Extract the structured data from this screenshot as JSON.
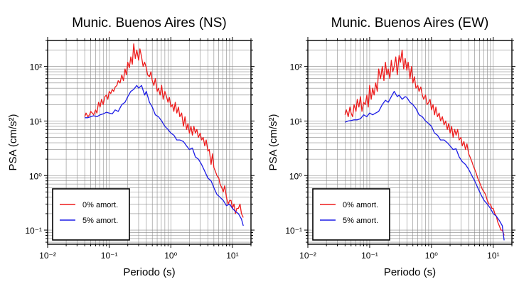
{
  "chart_data": [
    {
      "type": "line",
      "title": "Munic. Buenos Aires (NS)",
      "xlabel": "Periodo (s)",
      "ylabel": "PSA (cm/s²)",
      "xscale": "log",
      "yscale": "log",
      "xlim": [
        0.01,
        20
      ],
      "ylim": [
        0.055,
        300
      ],
      "xticks": [
        "10⁻²",
        "10⁻¹",
        "10⁰",
        "10¹"
      ],
      "yticks": [
        "10⁻¹",
        "10⁰",
        "10¹",
        "10²"
      ],
      "grid": true,
      "legend": "bottom-left",
      "series": [
        {
          "name": "0% amort.",
          "color": "#ee1c1c",
          "x": [
            0.04,
            0.042,
            0.045,
            0.048,
            0.05,
            0.053,
            0.056,
            0.06,
            0.063,
            0.067,
            0.071,
            0.075,
            0.08,
            0.085,
            0.09,
            0.095,
            0.1,
            0.106,
            0.112,
            0.118,
            0.125,
            0.133,
            0.14,
            0.15,
            0.16,
            0.17,
            0.18,
            0.19,
            0.2,
            0.212,
            0.224,
            0.237,
            0.25,
            0.265,
            0.28,
            0.3,
            0.315,
            0.335,
            0.355,
            0.375,
            0.4,
            0.42,
            0.45,
            0.475,
            0.5,
            0.53,
            0.56,
            0.6,
            0.63,
            0.67,
            0.71,
            0.75,
            0.8,
            0.85,
            0.9,
            0.95,
            1.0,
            1.06,
            1.12,
            1.18,
            1.25,
            1.33,
            1.4,
            1.5,
            1.6,
            1.7,
            1.8,
            1.9,
            2.0,
            2.12,
            2.24,
            2.37,
            2.5,
            2.65,
            2.8,
            3.0,
            3.15,
            3.35,
            3.55,
            3.75,
            4.0,
            4.2,
            4.5,
            4.75,
            5.0,
            5.3,
            5.6,
            6.0,
            6.3,
            6.7,
            7.1,
            7.5,
            8.0,
            8.5,
            9.0,
            9.5,
            10.0,
            10.6,
            11.2,
            11.8,
            12.5,
            13.3,
            14.0,
            15.0
          ],
          "y": [
            12,
            14,
            12,
            13,
            15,
            14,
            13,
            16,
            14,
            22,
            18,
            25,
            20,
            28,
            30,
            25,
            35,
            32,
            38,
            35,
            42,
            45,
            55,
            50,
            70,
            55,
            90,
            70,
            120,
            95,
            150,
            110,
            260,
            140,
            200,
            130,
            210,
            150,
            100,
            120,
            95,
            70,
            65,
            80,
            55,
            45,
            60,
            35,
            40,
            30,
            45,
            25,
            35,
            28,
            22,
            27,
            18,
            20,
            15,
            22,
            14,
            18,
            12,
            14,
            8,
            12,
            7,
            9,
            6,
            8,
            5.5,
            8,
            6,
            7,
            5,
            6,
            4.5,
            5,
            3.5,
            4.5,
            2.8,
            3,
            1.6,
            2.5,
            1.4,
            1.2,
            1.0,
            0.9,
            0.7,
            0.6,
            0.5,
            0.65,
            0.4,
            0.3,
            0.35,
            0.35,
            0.25,
            0.3,
            0.2,
            0.25,
            0.25,
            0.3,
            0.2,
            0.17
          ]
        },
        {
          "name": "5% amort.",
          "color": "#1c1ce6",
          "x": [
            0.04,
            0.045,
            0.05,
            0.056,
            0.063,
            0.071,
            0.08,
            0.09,
            0.1,
            0.112,
            0.125,
            0.14,
            0.16,
            0.18,
            0.2,
            0.224,
            0.25,
            0.28,
            0.3,
            0.335,
            0.375,
            0.4,
            0.45,
            0.5,
            0.56,
            0.63,
            0.71,
            0.8,
            0.9,
            1.0,
            1.12,
            1.25,
            1.4,
            1.6,
            1.8,
            2.0,
            2.24,
            2.5,
            2.8,
            3.15,
            3.55,
            4.0,
            4.5,
            5.0,
            5.6,
            6.3,
            7.1,
            8.0,
            9.0,
            10.0,
            11.2,
            12.5,
            14.0,
            15.0
          ],
          "y": [
            11.5,
            11.5,
            12,
            12.5,
            12,
            13,
            13.5,
            14.5,
            14,
            13.5,
            16,
            15,
            20,
            22,
            28,
            35,
            38,
            45,
            40,
            45,
            30,
            35,
            22,
            18,
            13,
            12,
            10,
            8,
            7,
            6,
            5.5,
            4.5,
            4.5,
            4.2,
            3.5,
            3,
            3.2,
            2.2,
            2.0,
            1.6,
            1.2,
            0.9,
            0.8,
            0.6,
            0.45,
            0.4,
            0.35,
            0.28,
            0.3,
            0.25,
            0.22,
            0.2,
            0.16,
            0.12
          ]
        }
      ]
    },
    {
      "type": "line",
      "title": "Munic. Buenos Aires (EW)",
      "xlabel": "Periodo (s)",
      "ylabel": "PSA (cm/s²)",
      "xscale": "log",
      "yscale": "log",
      "xlim": [
        0.01,
        20
      ],
      "ylim": [
        0.055,
        300
      ],
      "xticks": [
        "10⁻²",
        "10⁻¹",
        "10⁰",
        "10¹"
      ],
      "yticks": [
        "10⁻¹",
        "10⁰",
        "10¹",
        "10²"
      ],
      "grid": true,
      "legend": "bottom-left",
      "series": [
        {
          "name": "0% amort.",
          "color": "#ee1c1c",
          "x": [
            0.04,
            0.042,
            0.045,
            0.048,
            0.05,
            0.053,
            0.056,
            0.06,
            0.063,
            0.067,
            0.071,
            0.075,
            0.08,
            0.085,
            0.09,
            0.095,
            0.1,
            0.106,
            0.112,
            0.118,
            0.125,
            0.133,
            0.14,
            0.15,
            0.16,
            0.17,
            0.18,
            0.19,
            0.2,
            0.212,
            0.224,
            0.237,
            0.25,
            0.265,
            0.28,
            0.3,
            0.315,
            0.335,
            0.355,
            0.375,
            0.4,
            0.42,
            0.45,
            0.475,
            0.5,
            0.53,
            0.56,
            0.6,
            0.63,
            0.67,
            0.71,
            0.75,
            0.8,
            0.85,
            0.9,
            0.95,
            1.0,
            1.06,
            1.12,
            1.18,
            1.25,
            1.33,
            1.4,
            1.5,
            1.6,
            1.7,
            1.8,
            1.9,
            2.0,
            2.12,
            2.24,
            2.37,
            2.5,
            2.65,
            2.8,
            3.0,
            3.15,
            3.35,
            3.55,
            3.75,
            4.0,
            4.2,
            4.5,
            4.75,
            5.0,
            5.3,
            5.6,
            6.0,
            6.3,
            6.7,
            7.1,
            7.5,
            8.0,
            8.5,
            9.0,
            9.5,
            10.0,
            10.6,
            11.2,
            11.8,
            12.5,
            13.3,
            14.0,
            15.0
          ],
          "y": [
            13,
            16,
            12,
            18,
            14,
            12,
            20,
            15,
            25,
            18,
            28,
            15,
            22,
            20,
            30,
            18,
            45,
            25,
            40,
            30,
            50,
            35,
            90,
            60,
            100,
            55,
            120,
            70,
            90,
            60,
            130,
            80,
            100,
            150,
            70,
            160,
            120,
            200,
            90,
            140,
            85,
            120,
            60,
            100,
            50,
            65,
            40,
            45,
            35,
            42,
            30,
            25,
            30,
            20,
            22,
            25,
            16,
            20,
            13,
            18,
            12,
            14,
            10,
            12,
            8.5,
            10,
            7,
            9,
            6,
            8,
            5,
            7,
            5.5,
            7,
            4.5,
            5,
            3.5,
            4.2,
            3,
            3.8,
            2.5,
            2.2,
            1.8,
            1.5,
            1.3,
            1.1,
            0.9,
            0.75,
            0.65,
            0.55,
            0.5,
            0.45,
            0.35,
            0.3,
            0.3,
            0.25,
            0.25,
            0.2,
            0.18,
            0.14,
            0.12,
            0.1,
            0.1,
            0.08
          ]
        },
        {
          "name": "5% amort.",
          "color": "#1c1ce6",
          "x": [
            0.04,
            0.045,
            0.05,
            0.056,
            0.063,
            0.071,
            0.08,
            0.09,
            0.1,
            0.112,
            0.125,
            0.14,
            0.16,
            0.18,
            0.2,
            0.224,
            0.25,
            0.28,
            0.3,
            0.335,
            0.375,
            0.4,
            0.45,
            0.5,
            0.56,
            0.63,
            0.71,
            0.8,
            0.9,
            1.0,
            1.12,
            1.25,
            1.4,
            1.6,
            1.8,
            2.0,
            2.24,
            2.5,
            2.8,
            3.15,
            3.55,
            4.0,
            4.5,
            5.0,
            5.6,
            6.3,
            7.1,
            8.0,
            9.0,
            10.0,
            11.2,
            12.5,
            14.0,
            15.0
          ],
          "y": [
            9.5,
            10,
            10.2,
            10.5,
            10.5,
            11,
            13,
            12,
            14,
            13,
            14,
            15,
            20,
            24,
            22,
            28,
            35,
            28,
            30,
            25,
            28,
            27,
            22,
            20,
            17,
            13,
            12,
            10,
            9,
            8,
            6,
            5.5,
            4.5,
            4.5,
            4.0,
            3.5,
            3,
            3.1,
            2.2,
            1.8,
            1.6,
            1.3,
            1.0,
            0.8,
            0.6,
            0.45,
            0.35,
            0.3,
            0.25,
            0.2,
            0.18,
            0.15,
            0.12,
            0.065
          ]
        }
      ]
    }
  ]
}
